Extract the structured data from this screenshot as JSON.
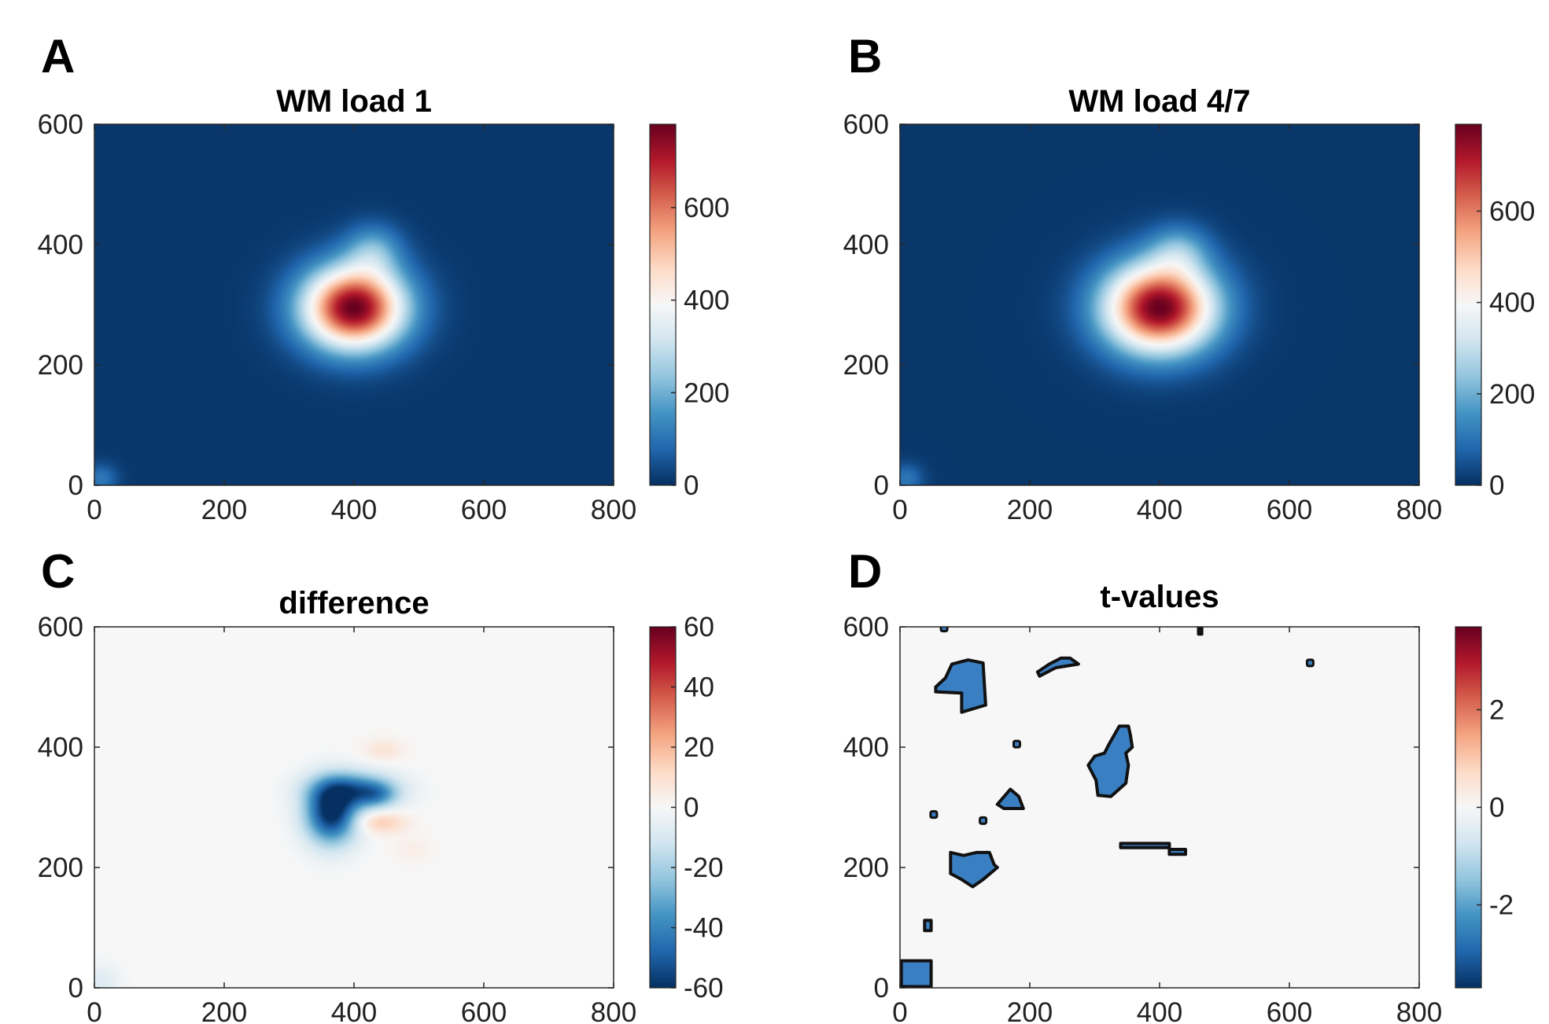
{
  "chart_data": [
    {
      "type": "heatmap",
      "panel_letter": "A",
      "title": "WM load 1",
      "xlabel": "",
      "ylabel": "",
      "xlim": [
        0,
        800
      ],
      "ylim": [
        0,
        600
      ],
      "xticks": [
        0,
        200,
        400,
        600,
        800
      ],
      "yticks": [
        0,
        200,
        400,
        600
      ],
      "colorbar": {
        "min": 0,
        "max": 780,
        "ticks": [
          0,
          200,
          400,
          600
        ]
      },
      "background_value": 10,
      "blobs": [
        {
          "x": 400,
          "y": 295,
          "amplitude": 770,
          "sigma_x": 55,
          "sigma_y": 48
        },
        {
          "x": 430,
          "y": 390,
          "amplitude": 160,
          "sigma_x": 30,
          "sigma_y": 30
        },
        {
          "x": 10,
          "y": 10,
          "amplitude": 100,
          "sigma_x": 18,
          "sigma_y": 18
        }
      ],
      "grid": false
    },
    {
      "type": "heatmap",
      "panel_letter": "B",
      "title": "WM load 4/7",
      "xlabel": "",
      "ylabel": "",
      "xlim": [
        0,
        800
      ],
      "ylim": [
        0,
        600
      ],
      "xticks": [
        0,
        200,
        400,
        600,
        800
      ],
      "yticks": [
        0,
        200,
        400,
        600
      ],
      "colorbar": {
        "min": 0,
        "max": 790,
        "ticks": [
          0,
          200,
          400,
          600
        ]
      },
      "background_value": 10,
      "blobs": [
        {
          "x": 400,
          "y": 295,
          "amplitude": 780,
          "sigma_x": 60,
          "sigma_y": 52
        },
        {
          "x": 430,
          "y": 390,
          "amplitude": 150,
          "sigma_x": 32,
          "sigma_y": 30
        },
        {
          "x": 10,
          "y": 10,
          "amplitude": 100,
          "sigma_x": 18,
          "sigma_y": 18
        }
      ],
      "grid": false
    },
    {
      "type": "heatmap",
      "panel_letter": "C",
      "title": "difference",
      "xlabel": "",
      "ylabel": "",
      "xlim": [
        0,
        800
      ],
      "ylim": [
        0,
        600
      ],
      "xticks": [
        0,
        200,
        400,
        600,
        800
      ],
      "yticks": [
        0,
        200,
        400,
        600
      ],
      "colorbar": {
        "min": -60,
        "max": 60,
        "ticks": [
          -60,
          -40,
          -20,
          0,
          20,
          40,
          60
        ]
      },
      "background_value": 0,
      "blobs": [
        {
          "x": 365,
          "y": 290,
          "amplitude": -62,
          "sigma_x": 28,
          "sigma_y": 35
        },
        {
          "x": 400,
          "y": 330,
          "amplitude": -38,
          "sigma_x": 45,
          "sigma_y": 20
        },
        {
          "x": 435,
          "y": 320,
          "amplitude": -22,
          "sigma_x": 22,
          "sigma_y": 15
        },
        {
          "x": 440,
          "y": 275,
          "amplitude": 16,
          "sigma_x": 28,
          "sigma_y": 13
        },
        {
          "x": 445,
          "y": 395,
          "amplitude": 8,
          "sigma_x": 22,
          "sigma_y": 13
        },
        {
          "x": 490,
          "y": 230,
          "amplitude": 4,
          "sigma_x": 20,
          "sigma_y": 15
        },
        {
          "x": 10,
          "y": 10,
          "amplitude": -8,
          "sigma_x": 20,
          "sigma_y": 20
        }
      ],
      "grid": false
    },
    {
      "type": "heatmap",
      "panel_letter": "D",
      "title": "t-values",
      "xlabel": "",
      "ylabel": "",
      "xlim": [
        0,
        800
      ],
      "ylim": [
        0,
        600
      ],
      "xticks": [
        0,
        200,
        400,
        600,
        800
      ],
      "yticks": [
        0,
        200,
        400,
        600
      ],
      "colorbar": {
        "min": -3.7,
        "max": 3.7,
        "ticks": [
          -2,
          0,
          2
        ]
      },
      "background_value": 0,
      "significant_regions": [
        {
          "points": [
            [
              2,
              2
            ],
            [
              48,
              2
            ],
            [
              48,
              45
            ],
            [
              2,
              45
            ]
          ]
        },
        {
          "points": [
            [
              55,
              500
            ],
            [
              70,
              515
            ],
            [
              80,
              538
            ],
            [
              105,
              545
            ],
            [
              128,
              540
            ],
            [
              132,
              470
            ],
            [
              95,
              458
            ],
            [
              95,
              490
            ],
            [
              55,
              492
            ]
          ]
        },
        {
          "points": [
            [
              212,
              525
            ],
            [
              230,
              538
            ],
            [
              248,
              548
            ],
            [
              262,
              548
            ],
            [
              275,
              538
            ],
            [
              240,
              532
            ],
            [
              215,
              518
            ]
          ]
        },
        {
          "points": [
            [
              322,
              405
            ],
            [
              338,
              435
            ],
            [
              352,
              435
            ],
            [
              355,
              420
            ],
            [
              358,
              400
            ],
            [
              348,
              390
            ],
            [
              352,
              370
            ],
            [
              348,
              340
            ],
            [
              325,
              318
            ],
            [
              305,
              320
            ],
            [
              302,
              345
            ],
            [
              290,
              370
            ],
            [
              300,
              385
            ],
            [
              315,
              390
            ]
          ]
        },
        {
          "points": [
            [
              78,
              225
            ],
            [
              98,
              220
            ],
            [
              118,
              225
            ],
            [
              138,
              225
            ],
            [
              145,
              205
            ],
            [
              150,
              200
            ],
            [
              128,
              180
            ],
            [
              112,
              168
            ],
            [
              95,
              180
            ],
            [
              78,
              190
            ]
          ]
        },
        {
          "points": [
            [
              150,
              305
            ],
            [
              170,
              330
            ],
            [
              183,
              318
            ],
            [
              190,
              298
            ],
            [
              160,
              298
            ]
          ]
        },
        {
          "points": [
            [
              38,
              95
            ],
            [
              48,
              95
            ],
            [
              48,
              112
            ],
            [
              38,
              112
            ]
          ]
        },
        {
          "points": [
            [
              340,
              233
            ],
            [
              415,
              233
            ],
            [
              415,
              240
            ],
            [
              340,
              240
            ]
          ]
        },
        {
          "points": [
            [
              415,
              222
            ],
            [
              440,
              222
            ],
            [
              440,
              230
            ],
            [
              415,
              230
            ]
          ]
        },
        {
          "points": [
            [
              460,
              588
            ],
            [
              465,
              588
            ],
            [
              465,
              600
            ],
            [
              460,
              600
            ]
          ]
        }
      ],
      "significant_dots": [
        {
          "x": 68,
          "y": 598
        },
        {
          "x": 180,
          "y": 405
        },
        {
          "x": 128,
          "y": 278
        },
        {
          "x": 52,
          "y": 288
        },
        {
          "x": 632,
          "y": 540
        }
      ],
      "grid": false
    }
  ]
}
